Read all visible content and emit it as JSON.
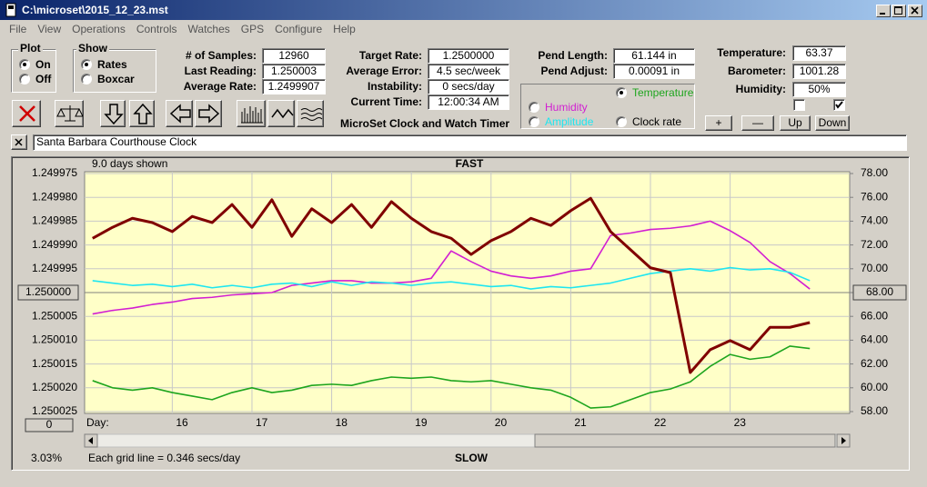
{
  "window": {
    "title": "C:\\microset\\2015_12_23.mst"
  },
  "menu": [
    "File",
    "View",
    "Operations",
    "Controls",
    "Watches",
    "GPS",
    "Configure",
    "Help"
  ],
  "plot_group": {
    "title": "Plot",
    "options": [
      "On",
      "Off"
    ],
    "selected": 0
  },
  "show_group": {
    "title": "Show",
    "options": [
      "Rates",
      "Boxcar"
    ],
    "selected": 0
  },
  "readouts": [
    [
      {
        "label": "# of Samples:",
        "value": "12960"
      },
      {
        "label": "Last Reading:",
        "value": "1.250003"
      },
      {
        "label": "Average Rate:",
        "value": "1.2499907"
      }
    ],
    [
      {
        "label": "Target Rate:",
        "value": "1.2500000"
      },
      {
        "label": "Average Error:",
        "value": "4.5 sec/week"
      },
      {
        "label": "Instability:",
        "value": "0 secs/day"
      },
      {
        "label": "Current Time:",
        "value": "12:00:34 AM"
      }
    ],
    [
      {
        "label": "Pend Length:",
        "value": "61.144 in"
      },
      {
        "label": "Pend Adjust:",
        "value": "0.00091 in"
      }
    ],
    [
      {
        "label": "Temperature:",
        "value": "63.37"
      },
      {
        "label": "Barometer:",
        "value": "1001.28"
      },
      {
        "label": "Humidity:",
        "value": "50%"
      }
    ]
  ],
  "app_name": "MicroSet Clock and Watch Timer",
  "checkboxes": [
    false,
    true
  ],
  "buttons": [
    "+",
    "—",
    "Up",
    "Down"
  ],
  "watch_name": "Santa Barbara Courthouse Clock",
  "chart_data": {
    "type": "line",
    "top_label": "FAST",
    "bottom_label": "SLOW",
    "days_shown": "9.0 days shown",
    "x_axis_label": "Day:",
    "offset": "0",
    "zoom": "3.03%",
    "grid_note": "Each grid line = 0.346 secs/day",
    "grid": true,
    "xlim": [
      14.9,
      24.5
    ],
    "xticks": [
      16,
      17,
      18,
      19,
      20,
      21,
      22,
      23
    ],
    "ylim": [
      1.249975,
      1.250025
    ],
    "yticks": [
      1.249975,
      {
        "value": 1.24998,
        "label": "1.249980"
      },
      1.249985,
      {
        "value": 1.24999,
        "label": "1.249990"
      },
      1.249995,
      {
        "value": 1.25,
        "label": "1.250000"
      },
      1.250005,
      {
        "value": 1.25001,
        "label": "1.250010"
      },
      1.250015,
      {
        "value": 1.25002,
        "label": "1.250020"
      },
      1.250025
    ],
    "y2lim": [
      58,
      78
    ],
    "y2ticks": [
      {
        "value": 78,
        "label": "78.00"
      },
      {
        "value": 76,
        "label": "76.00"
      },
      {
        "value": 74,
        "label": "74.00"
      },
      {
        "value": 72,
        "label": "72.00"
      },
      {
        "value": 70,
        "label": "70.00"
      },
      {
        "value": 68,
        "label": "68.00"
      },
      {
        "value": 66,
        "label": "66.00"
      },
      {
        "value": 64,
        "label": "64.00"
      },
      {
        "value": 62,
        "label": "62.00"
      },
      {
        "value": 60,
        "label": "60.00"
      },
      {
        "value": 58,
        "label": "58.00"
      }
    ],
    "x": [
      15.0,
      15.25,
      15.5,
      15.75,
      16.0,
      16.25,
      16.5,
      16.75,
      17.0,
      17.25,
      17.5,
      17.75,
      18.0,
      18.25,
      18.5,
      18.75,
      19.0,
      19.25,
      19.5,
      19.75,
      20.0,
      20.25,
      20.5,
      20.75,
      21.0,
      21.25,
      21.5,
      21.75,
      22.0,
      22.25,
      22.5,
      22.75,
      23.0,
      23.25,
      23.5,
      23.75,
      24.0
    ],
    "series": [
      {
        "name": "Temperature",
        "color": "#1ea51e",
        "label_color": "#1ea51e",
        "axis": "y2",
        "selected": true,
        "values": [
          60.6,
          60.0,
          59.8,
          60.0,
          59.6,
          59.3,
          59.0,
          59.6,
          60.0,
          59.6,
          59.8,
          60.2,
          60.3,
          60.2,
          60.6,
          60.9,
          60.8,
          60.9,
          60.6,
          60.5,
          60.6,
          60.3,
          60.0,
          59.8,
          59.2,
          58.3,
          58.4,
          59.0,
          59.6,
          59.9,
          60.5,
          61.8,
          62.8,
          62.4,
          62.6,
          63.5,
          63.3
        ]
      },
      {
        "name": "Humidity",
        "color": "#d21ed2",
        "label_color": "#d21ed2",
        "axis": "y2",
        "selected": false,
        "values": [
          66.2,
          66.5,
          66.7,
          67.0,
          67.2,
          67.5,
          67.6,
          67.8,
          67.9,
          68.0,
          68.6,
          68.8,
          69.0,
          69.0,
          68.8,
          68.8,
          68.9,
          69.2,
          71.5,
          70.6,
          69.8,
          69.4,
          69.2,
          69.4,
          69.8,
          70.0,
          72.8,
          73.0,
          73.3,
          73.4,
          73.6,
          74.0,
          73.2,
          72.2,
          70.6,
          69.6,
          68.3
        ]
      },
      {
        "name": "Amplitude",
        "color": "#1ee6f0",
        "label_color": "#1ee6f0",
        "axis": "y2",
        "selected": false,
        "values": [
          69.0,
          68.8,
          68.6,
          68.7,
          68.5,
          68.7,
          68.4,
          68.6,
          68.4,
          68.7,
          68.8,
          68.5,
          68.9,
          68.6,
          68.9,
          68.8,
          68.6,
          68.8,
          68.9,
          68.7,
          68.5,
          68.6,
          68.3,
          68.5,
          68.4,
          68.6,
          68.8,
          69.2,
          69.6,
          69.8,
          70.0,
          69.8,
          70.1,
          69.9,
          70.0,
          69.7,
          69.0
        ]
      },
      {
        "name": "Clock rate",
        "color": "#800000",
        "label_color": "#000000",
        "axis": "y",
        "selected": false,
        "values": [
          1.2499886,
          1.2499863,
          1.2499844,
          1.2499853,
          1.2499872,
          1.249984,
          1.2499853,
          1.2499815,
          1.2499863,
          1.2499805,
          1.2499882,
          1.2499824,
          1.2499853,
          1.2499815,
          1.2499863,
          1.2499809,
          1.2499844,
          1.2499872,
          1.2499886,
          1.249992,
          1.2499891,
          1.2499872,
          1.2499844,
          1.2499859,
          1.2499828,
          1.2499802,
          1.2499872,
          1.249991,
          1.2499948,
          1.2499958,
          1.2500168,
          1.250012,
          1.2500101,
          1.250012,
          1.2500073,
          1.2500073,
          1.2500063
        ]
      }
    ]
  }
}
